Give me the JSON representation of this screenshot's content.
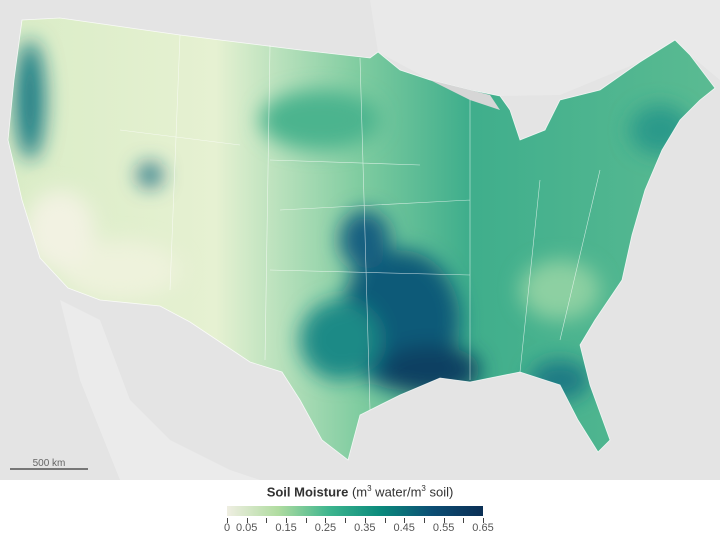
{
  "map": {
    "scale_label": "500 km",
    "colors": {
      "land_bg": "#e4e4e4",
      "water": "#d6d6d6",
      "low": "#f1f0e0",
      "mid": "#2fa98c",
      "high": "#0b3a5c"
    }
  },
  "legend": {
    "title": "Soil Moisture",
    "unit_prefix": "(m",
    "unit_sup1": "3",
    "unit_mid": " water/m",
    "unit_sup2": "3",
    "unit_suffix": " soil)",
    "min": 0,
    "max": 0.65,
    "tick_step": 0.05,
    "labels": [
      "0",
      "0.05",
      "0.15",
      "0.25",
      "0.35",
      "0.45",
      "0.55",
      "0.65"
    ],
    "colors": [
      "#efeee2",
      "#b0dca0",
      "#3db58e",
      "#0b8a7c",
      "#0c4e74",
      "#0b2f55"
    ]
  }
}
